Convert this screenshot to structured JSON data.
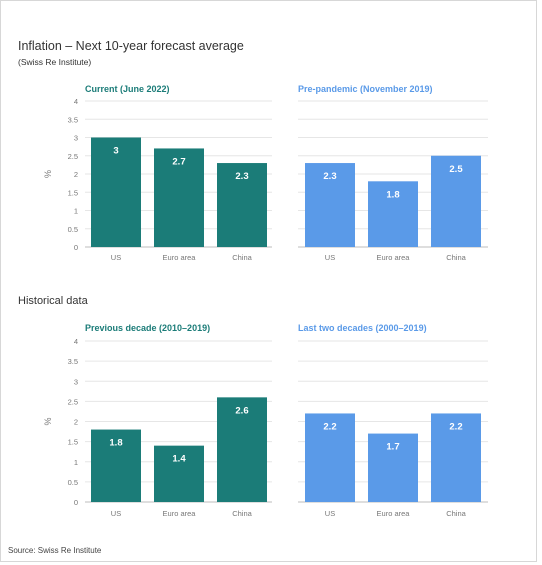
{
  "title": "Inflation – Next 10-year forecast average",
  "subtitle": "(Swiss Re Institute)",
  "section_title": "Historical data",
  "source": "Source: Swiss Re Institute",
  "colors": {
    "teal": "#1b7c78",
    "blue": "#5a9ae8",
    "grid": "#e6e6e6"
  },
  "chart_data": [
    {
      "type": "bar",
      "title": "Current (June 2022)",
      "categories": [
        "US",
        "Euro area",
        "China"
      ],
      "values": [
        3,
        2.7,
        2.3
      ],
      "ylabel": "%",
      "ylim": [
        0,
        4
      ],
      "yticks": [
        "0",
        "0.5",
        "1",
        "1.5",
        "2",
        "2.5",
        "3",
        "3.5",
        "4"
      ],
      "color": "#1b7c78"
    },
    {
      "type": "bar",
      "title": "Pre-pandemic (November 2019)",
      "categories": [
        "US",
        "Euro area",
        "China"
      ],
      "values": [
        2.3,
        1.8,
        2.5
      ],
      "ylim": [
        0,
        4
      ],
      "color": "#5a9ae8"
    },
    {
      "type": "bar",
      "title": "Previous decade (2010–2019)",
      "categories": [
        "US",
        "Euro area",
        "China"
      ],
      "values": [
        1.8,
        1.4,
        2.6
      ],
      "ylabel": "%",
      "ylim": [
        0,
        4
      ],
      "yticks": [
        "0",
        "0.5",
        "1",
        "1.5",
        "2",
        "2.5",
        "3",
        "3.5",
        "4"
      ],
      "color": "#1b7c78"
    },
    {
      "type": "bar",
      "title": "Last two decades (2000–2019)",
      "categories": [
        "US",
        "Euro area",
        "China"
      ],
      "values": [
        2.2,
        1.7,
        2.2
      ],
      "ylim": [
        0,
        4
      ],
      "color": "#5a9ae8"
    }
  ]
}
